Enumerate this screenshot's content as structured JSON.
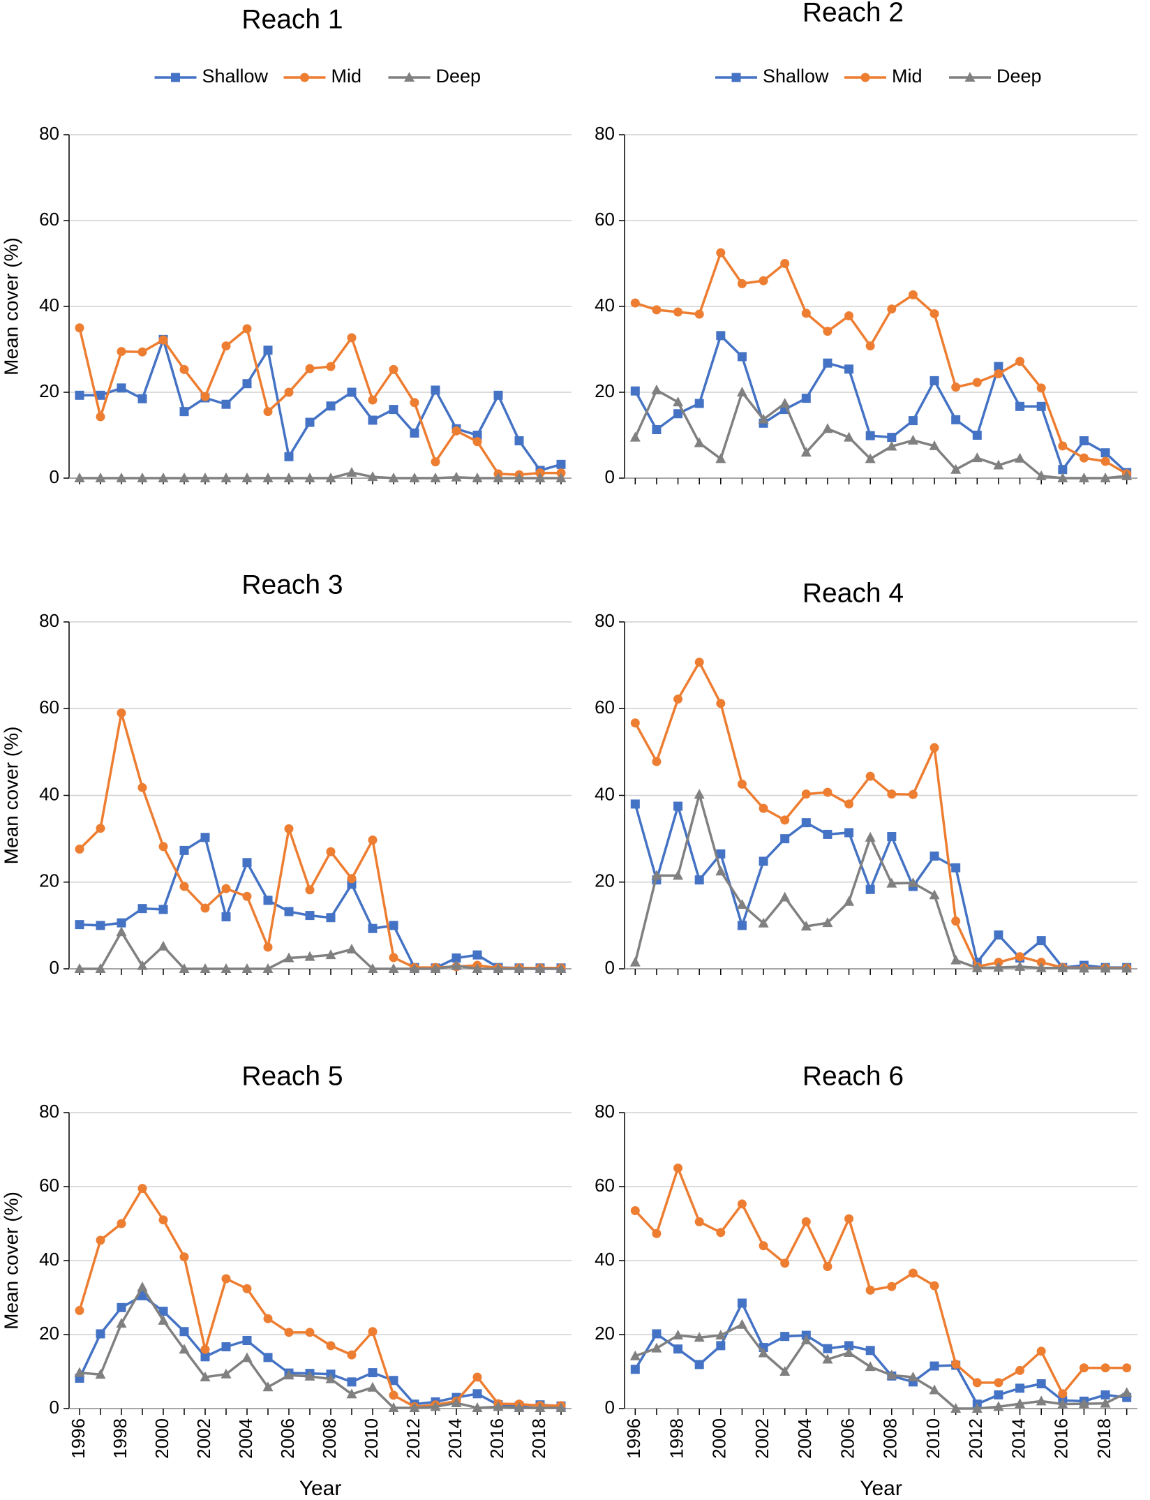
{
  "chart_data": [
    {
      "type": "line",
      "title": "Reach 1",
      "ylabel": "Mean cover (%)",
      "legend": "top",
      "x": [
        1996,
        1997,
        1998,
        1999,
        2000,
        2001,
        2002,
        2003,
        2004,
        2005,
        2006,
        2007,
        2008,
        2009,
        2010,
        2011,
        2012,
        2013,
        2014,
        2015,
        2016,
        2017,
        2018,
        2019
      ],
      "xlim": [
        1995.5,
        2019.5
      ],
      "ylim": [
        0,
        80
      ],
      "yticks": [
        0,
        20,
        40,
        60,
        80
      ],
      "grid": true,
      "series": [
        {
          "name": "Shallow",
          "color": "#4472c4",
          "marker": "square",
          "values": [
            19.3,
            19.3,
            21,
            18.5,
            32.3,
            15.5,
            18.7,
            17.2,
            22,
            29.8,
            5,
            13,
            16.8,
            20,
            13.5,
            16,
            10.5,
            20.5,
            11.5,
            10,
            19.3,
            8.7,
            1.8,
            3.2
          ]
        },
        {
          "name": "Mid",
          "color": "#ed7d31",
          "marker": "circle",
          "values": [
            35,
            14.3,
            29.5,
            29.4,
            32.2,
            25.3,
            19,
            30.8,
            34.8,
            15.5,
            20,
            25.5,
            26,
            32.7,
            18.2,
            25.3,
            17.6,
            3.8,
            11,
            8.5,
            1,
            0.8,
            1.2,
            1.2
          ]
        },
        {
          "name": "Deep",
          "color": "#808080",
          "marker": "triangle",
          "values": [
            0,
            0,
            0,
            0,
            0,
            0,
            0,
            0,
            0,
            0,
            0,
            0,
            0,
            1.3,
            0.3,
            0,
            0,
            0,
            0.2,
            0,
            0,
            0,
            0,
            0
          ]
        }
      ]
    },
    {
      "type": "line",
      "title": "Reach 2",
      "legend": "top",
      "x": [
        1996,
        1997,
        1998,
        1999,
        2000,
        2001,
        2002,
        2003,
        2004,
        2005,
        2006,
        2007,
        2008,
        2009,
        2010,
        2011,
        2012,
        2013,
        2014,
        2015,
        2016,
        2017,
        2018,
        2019
      ],
      "xlim": [
        1995.5,
        2019.5
      ],
      "ylim": [
        0,
        80
      ],
      "yticks": [
        0,
        20,
        40,
        60,
        80
      ],
      "grid": true,
      "series": [
        {
          "name": "Shallow",
          "color": "#4472c4",
          "marker": "square",
          "values": [
            20.3,
            11.3,
            15,
            17.4,
            33.2,
            28.3,
            12.8,
            16,
            18.6,
            26.8,
            25.4,
            9.9,
            9.5,
            13.4,
            22.7,
            13.6,
            10,
            26,
            16.7,
            16.7,
            2,
            8.7,
            5.9,
            1.3
          ]
        },
        {
          "name": "Mid",
          "color": "#ed7d31",
          "marker": "circle",
          "values": [
            40.8,
            39.2,
            38.7,
            38.2,
            52.5,
            45.3,
            46,
            50,
            38.4,
            34.2,
            37.8,
            30.8,
            39.4,
            42.7,
            38.3,
            21.2,
            22.3,
            24.3,
            27.2,
            21,
            7.5,
            4.7,
            3.9,
            1
          ]
        },
        {
          "name": "Deep",
          "color": "#808080",
          "marker": "triangle",
          "values": [
            9.5,
            20.5,
            17.7,
            8.2,
            4.5,
            20,
            13.7,
            17.4,
            6,
            11.5,
            9.5,
            4.5,
            7.4,
            8.8,
            7.5,
            2,
            4.7,
            3,
            4.6,
            0.5,
            0,
            0,
            0,
            0.5
          ]
        }
      ]
    },
    {
      "type": "line",
      "title": "Reach 3",
      "ylabel": "Mean cover (%)",
      "x": [
        1996,
        1997,
        1998,
        1999,
        2000,
        2001,
        2002,
        2003,
        2004,
        2005,
        2006,
        2007,
        2008,
        2009,
        2010,
        2011,
        2012,
        2013,
        2014,
        2015,
        2016,
        2017,
        2018,
        2019
      ],
      "xlim": [
        1995.5,
        2019.5
      ],
      "ylim": [
        0,
        80
      ],
      "yticks": [
        0,
        20,
        40,
        60,
        80
      ],
      "grid": true,
      "series": [
        {
          "name": "Shallow",
          "color": "#4472c4",
          "marker": "square",
          "values": [
            10.2,
            10,
            10.6,
            13.9,
            13.7,
            27.3,
            30.3,
            12,
            24.5,
            15.8,
            13.2,
            12.3,
            11.8,
            19.5,
            9.3,
            10,
            0.3,
            0.2,
            2.5,
            3.2,
            0.3,
            0.2,
            0.2,
            0.2
          ]
        },
        {
          "name": "Mid",
          "color": "#ed7d31",
          "marker": "circle",
          "values": [
            27.6,
            32.4,
            59,
            41.8,
            28.2,
            19,
            14,
            18.5,
            16.7,
            5,
            32.3,
            18.2,
            27,
            20.8,
            29.7,
            2.6,
            0.3,
            0.3,
            0.5,
            0.8,
            0.2,
            0.2,
            0.2,
            0.2
          ]
        },
        {
          "name": "Deep",
          "color": "#808080",
          "marker": "triangle",
          "values": [
            0,
            0,
            8.5,
            0.7,
            5.2,
            0,
            0,
            0,
            0,
            0,
            2.5,
            2.8,
            3.2,
            4.5,
            0,
            0,
            0,
            0,
            0.7,
            0,
            0,
            0,
            0,
            0
          ]
        }
      ]
    },
    {
      "type": "line",
      "title": "Reach 4",
      "x": [
        1996,
        1997,
        1998,
        1999,
        2000,
        2001,
        2002,
        2003,
        2004,
        2005,
        2006,
        2007,
        2008,
        2009,
        2010,
        2011,
        2012,
        2013,
        2014,
        2015,
        2016,
        2017,
        2018,
        2019
      ],
      "xlim": [
        1995.5,
        2019.5
      ],
      "ylim": [
        0,
        80
      ],
      "yticks": [
        0,
        20,
        40,
        60,
        80
      ],
      "grid": true,
      "series": [
        {
          "name": "Shallow",
          "color": "#4472c4",
          "marker": "square",
          "values": [
            38,
            20.5,
            37.5,
            20.5,
            26.5,
            10,
            24.8,
            30,
            33.7,
            31,
            31.4,
            18.3,
            30.5,
            19,
            26,
            23.3,
            1.5,
            7.8,
            2.5,
            6.5,
            0.3,
            0.8,
            0.3,
            0.3
          ]
        },
        {
          "name": "Mid",
          "color": "#ed7d31",
          "marker": "circle",
          "values": [
            56.7,
            47.8,
            62.2,
            70.7,
            61.2,
            42.6,
            37,
            34.3,
            40.3,
            40.7,
            38,
            44.4,
            40.3,
            40.2,
            51,
            11,
            0.5,
            1.5,
            2.8,
            1.5,
            0.3,
            0.2,
            0.2,
            0.2
          ]
        },
        {
          "name": "Deep",
          "color": "#808080",
          "marker": "triangle",
          "values": [
            1.5,
            21.5,
            21.5,
            40.2,
            22.5,
            14.8,
            10.5,
            16.5,
            9.8,
            10.6,
            15.5,
            30.3,
            19.7,
            19.8,
            17,
            2,
            0.2,
            0.3,
            0.5,
            0.2,
            0.2,
            0.1,
            0.1,
            0.1
          ]
        }
      ]
    },
    {
      "type": "line",
      "title": "Reach 5",
      "ylabel": "Mean cover (%)",
      "xlabel": "Year",
      "x": [
        1996,
        1997,
        1998,
        1999,
        2000,
        2001,
        2002,
        2003,
        2004,
        2005,
        2006,
        2007,
        2008,
        2009,
        2010,
        2011,
        2012,
        2013,
        2014,
        2015,
        2016,
        2017,
        2018,
        2019
      ],
      "xlim": [
        1995.5,
        2019.5
      ],
      "xticks": [
        1996,
        1998,
        2000,
        2002,
        2004,
        2006,
        2008,
        2010,
        2012,
        2014,
        2016,
        2018
      ],
      "ylim": [
        0,
        80
      ],
      "yticks": [
        0,
        20,
        40,
        60,
        80
      ],
      "grid": true,
      "series": [
        {
          "name": "Shallow",
          "color": "#4472c4",
          "marker": "square",
          "values": [
            8.2,
            20.2,
            27.3,
            30.5,
            26.3,
            20.8,
            14,
            16.7,
            18.4,
            13.8,
            9.6,
            9.5,
            9.3,
            7.2,
            9.7,
            7.6,
            1.2,
            1.8,
            3,
            4,
            1,
            0.7,
            1,
            0.7
          ]
        },
        {
          "name": "Mid",
          "color": "#ed7d31",
          "marker": "circle",
          "values": [
            26.5,
            45.5,
            50,
            59.5,
            51,
            41,
            16,
            35.1,
            32.4,
            24.3,
            20.6,
            20.6,
            17,
            14.5,
            20.8,
            3.6,
            0.5,
            1,
            2,
            8.5,
            1.3,
            1.2,
            0.8,
            0.8
          ]
        },
        {
          "name": "Deep",
          "color": "#808080",
          "marker": "triangle",
          "values": [
            9.7,
            9.2,
            23,
            32.8,
            23.8,
            16,
            8.5,
            9.3,
            13.7,
            5.8,
            9,
            8.7,
            8,
            3.9,
            5.7,
            0.2,
            0.2,
            0.5,
            1.5,
            0.2,
            0.5,
            0.2,
            0.2,
            0.2
          ]
        }
      ]
    },
    {
      "type": "line",
      "title": "Reach 6",
      "xlabel": "Year",
      "x": [
        1996,
        1997,
        1998,
        1999,
        2000,
        2001,
        2002,
        2003,
        2004,
        2005,
        2006,
        2007,
        2008,
        2009,
        2010,
        2011,
        2012,
        2013,
        2014,
        2015,
        2016,
        2017,
        2018,
        2019
      ],
      "xlim": [
        1995.5,
        2019.5
      ],
      "xticks": [
        1996,
        1998,
        2000,
        2002,
        2004,
        2006,
        2008,
        2010,
        2012,
        2014,
        2016,
        2018
      ],
      "ylim": [
        0,
        80
      ],
      "yticks": [
        0,
        20,
        40,
        60,
        80
      ],
      "grid": true,
      "series": [
        {
          "name": "Shallow",
          "color": "#4472c4",
          "marker": "square",
          "values": [
            10.6,
            20.2,
            16.1,
            11.9,
            17,
            28.5,
            16.5,
            19.5,
            19.8,
            16.2,
            17,
            15.7,
            8.8,
            7.2,
            11.5,
            11.7,
            1.2,
            3.7,
            5.5,
            6.7,
            2.2,
            2,
            3.7,
            3
          ]
        },
        {
          "name": "Mid",
          "color": "#ed7d31",
          "marker": "circle",
          "values": [
            53.5,
            47.3,
            65,
            50.5,
            47.6,
            55.3,
            44,
            39.3,
            50.5,
            38.4,
            51.3,
            32,
            33,
            36.6,
            33.2,
            12,
            7,
            7,
            10.3,
            15.5,
            4,
            11,
            11,
            11
          ]
        },
        {
          "name": "Deep",
          "color": "#808080",
          "marker": "triangle",
          "values": [
            14.2,
            16.3,
            19.8,
            19.2,
            19.8,
            22.7,
            15,
            10,
            18.5,
            13.3,
            15.1,
            11.3,
            9,
            8.5,
            5,
            0,
            0,
            0.5,
            1.3,
            2,
            1.2,
            1.3,
            1.4,
            4.3
          ]
        }
      ]
    }
  ]
}
